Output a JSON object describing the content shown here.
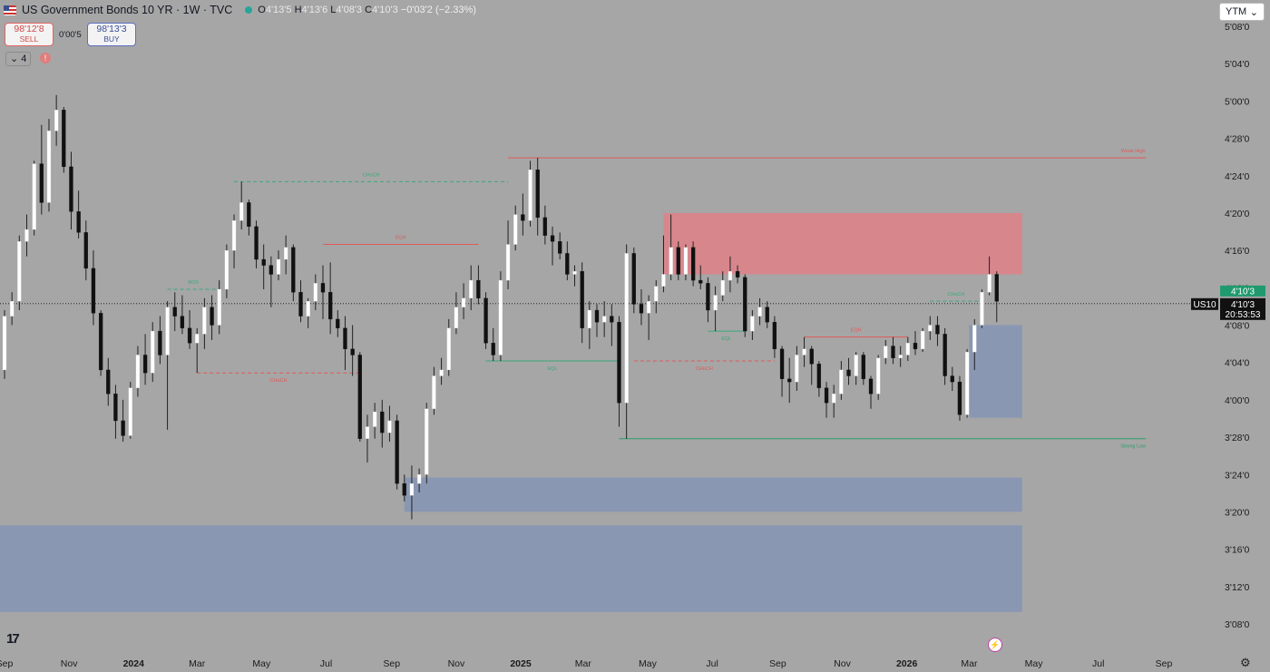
{
  "header": {
    "title": "US Government Bonds 10 YR · 1W · TVC",
    "open_label": "O",
    "open": "4'13'5",
    "high_label": "H",
    "high": "4'13'6",
    "low_label": "L",
    "low": "4'08'3",
    "close_label": "C",
    "close": "4'10'3",
    "change": "−0'03'2 (−2.33%)",
    "status_color": "#26a69a"
  },
  "trade": {
    "sell_price": "98'12'8",
    "sell_label": "SELL",
    "spread": "0'00'5",
    "buy_price": "98'13'3",
    "buy_label": "BUY"
  },
  "indicators_count": "4",
  "warning_icon": "!",
  "scale_mode": {
    "label": "YTM",
    "chevron": "⌄"
  },
  "price_labels": {
    "last": "4'10'3",
    "symbol": "US10",
    "current": "4'10'3",
    "countdown": "20:53:53"
  },
  "footer": {
    "logo": "17"
  },
  "chart_data": {
    "type": "candlestick",
    "timeframe": "1W",
    "y_axis": {
      "unit": "percent (in 32nds format)",
      "ticks": [
        {
          "label": "5'08'0",
          "value": 5.25
        },
        {
          "label": "5'04'0",
          "value": 5.125
        },
        {
          "label": "5'00'0",
          "value": 5.0
        },
        {
          "label": "4'28'0",
          "value": 4.875
        },
        {
          "label": "4'24'0",
          "value": 4.75
        },
        {
          "label": "4'20'0",
          "value": 4.625
        },
        {
          "label": "4'16'0",
          "value": 4.5
        },
        {
          "label": "4'12'0",
          "value": 4.375
        },
        {
          "label": "4'08'0",
          "value": 4.25
        },
        {
          "label": "4'04'0",
          "value": 4.125
        },
        {
          "label": "4'00'0",
          "value": 4.0
        },
        {
          "label": "3'28'0",
          "value": 3.875
        },
        {
          "label": "3'24'0",
          "value": 3.75
        },
        {
          "label": "3'20'0",
          "value": 3.625
        },
        {
          "label": "3'16'0",
          "value": 3.5
        },
        {
          "label": "3'12'0",
          "value": 3.375
        },
        {
          "label": "3'08'0",
          "value": 3.25
        }
      ]
    },
    "x_axis": {
      "start": "2023-09-01",
      "end": "2026-09-15",
      "ticks": [
        {
          "label": "Sep",
          "date": "2023-09-01"
        },
        {
          "label": "Nov",
          "date": "2023-11-01"
        },
        {
          "label": "2024",
          "date": "2024-01-01",
          "bold": true
        },
        {
          "label": "Mar",
          "date": "2024-03-01"
        },
        {
          "label": "May",
          "date": "2024-05-01"
        },
        {
          "label": "Jul",
          "date": "2024-07-01"
        },
        {
          "label": "Sep",
          "date": "2024-09-01"
        },
        {
          "label": "Nov",
          "date": "2024-11-01"
        },
        {
          "label": "2025",
          "date": "2025-01-01",
          "bold": true
        },
        {
          "label": "Mar",
          "date": "2025-03-01"
        },
        {
          "label": "May",
          "date": "2025-05-01"
        },
        {
          "label": "Jul",
          "date": "2025-07-01"
        },
        {
          "label": "Sep",
          "date": "2025-09-01"
        },
        {
          "label": "Nov",
          "date": "2025-11-01"
        },
        {
          "label": "2026",
          "date": "2026-01-01",
          "bold": true
        },
        {
          "label": "Mar",
          "date": "2026-03-01"
        },
        {
          "label": "May",
          "date": "2026-05-01"
        },
        {
          "label": "Jul",
          "date": "2026-07-01"
        },
        {
          "label": "Sep",
          "date": "2026-09-01"
        }
      ]
    },
    "candles": [
      [
        "2023-09-01",
        4.1,
        4.3,
        4.07,
        4.28
      ],
      [
        "2023-09-08",
        4.28,
        4.36,
        4.25,
        4.33
      ],
      [
        "2023-09-15",
        4.33,
        4.55,
        4.3,
        4.53
      ],
      [
        "2023-09-22",
        4.53,
        4.62,
        4.48,
        4.57
      ],
      [
        "2023-09-29",
        4.57,
        4.8,
        4.55,
        4.79
      ],
      [
        "2023-10-06",
        4.79,
        4.92,
        4.62,
        4.66
      ],
      [
        "2023-10-13",
        4.66,
        4.94,
        4.63,
        4.9
      ],
      [
        "2023-10-20",
        4.9,
        5.02,
        4.85,
        4.97
      ],
      [
        "2023-10-27",
        4.97,
        4.98,
        4.76,
        4.78
      ],
      [
        "2023-11-03",
        4.78,
        4.83,
        4.57,
        4.63
      ],
      [
        "2023-11-10",
        4.63,
        4.7,
        4.54,
        4.56
      ],
      [
        "2023-11-17",
        4.56,
        4.6,
        4.4,
        4.44
      ],
      [
        "2023-11-24",
        4.44,
        4.5,
        4.25,
        4.29
      ],
      [
        "2023-12-01",
        4.29,
        4.3,
        4.08,
        4.1
      ],
      [
        "2023-12-08",
        4.1,
        4.14,
        3.98,
        4.02
      ],
      [
        "2023-12-15",
        4.02,
        4.05,
        3.87,
        3.93
      ],
      [
        "2023-12-22",
        3.93,
        4.0,
        3.86,
        3.88
      ],
      [
        "2023-12-29",
        3.88,
        4.06,
        3.87,
        4.04
      ],
      [
        "2024-01-05",
        4.04,
        4.18,
        4.01,
        4.15
      ],
      [
        "2024-01-12",
        4.15,
        4.22,
        4.05,
        4.09
      ],
      [
        "2024-01-19",
        4.09,
        4.26,
        4.06,
        4.23
      ],
      [
        "2024-01-26",
        4.23,
        4.28,
        4.12,
        4.15
      ],
      [
        "2024-02-02",
        4.15,
        4.33,
        3.9,
        4.31
      ],
      [
        "2024-02-09",
        4.31,
        4.36,
        4.23,
        4.28
      ],
      [
        "2024-02-16",
        4.28,
        4.35,
        4.22,
        4.24
      ],
      [
        "2024-02-23",
        4.24,
        4.3,
        4.17,
        4.19
      ],
      [
        "2024-03-01",
        4.19,
        4.24,
        4.09,
        4.22
      ],
      [
        "2024-03-08",
        4.22,
        4.34,
        4.17,
        4.31
      ],
      [
        "2024-03-15",
        4.31,
        4.35,
        4.2,
        4.25
      ],
      [
        "2024-03-22",
        4.25,
        4.4,
        4.22,
        4.37
      ],
      [
        "2024-03-29",
        4.37,
        4.52,
        4.34,
        4.5
      ],
      [
        "2024-04-05",
        4.5,
        4.62,
        4.44,
        4.6
      ],
      [
        "2024-04-12",
        4.6,
        4.73,
        4.57,
        4.66
      ],
      [
        "2024-04-19",
        4.66,
        4.67,
        4.55,
        4.58
      ],
      [
        "2024-04-26",
        4.58,
        4.6,
        4.44,
        4.47
      ],
      [
        "2024-05-03",
        4.47,
        4.52,
        4.37,
        4.45
      ],
      [
        "2024-05-10",
        4.45,
        4.48,
        4.31,
        4.42
      ],
      [
        "2024-05-17",
        4.42,
        4.5,
        4.4,
        4.47
      ],
      [
        "2024-05-24",
        4.47,
        4.55,
        4.42,
        4.51
      ],
      [
        "2024-05-31",
        4.51,
        4.52,
        4.33,
        4.36
      ],
      [
        "2024-06-07",
        4.36,
        4.4,
        4.26,
        4.28
      ],
      [
        "2024-06-14",
        4.28,
        4.34,
        4.24,
        4.33
      ],
      [
        "2024-06-21",
        4.33,
        4.42,
        4.3,
        4.39
      ],
      [
        "2024-06-28",
        4.39,
        4.45,
        4.27,
        4.36
      ],
      [
        "2024-07-05",
        4.36,
        4.46,
        4.22,
        4.27
      ],
      [
        "2024-07-12",
        4.27,
        4.3,
        4.21,
        4.24
      ],
      [
        "2024-07-19",
        4.24,
        4.28,
        4.1,
        4.17
      ],
      [
        "2024-07-26",
        4.17,
        4.25,
        4.08,
        4.15
      ],
      [
        "2024-08-02",
        4.15,
        4.16,
        3.86,
        3.87
      ],
      [
        "2024-08-09",
        3.87,
        3.95,
        3.79,
        3.91
      ],
      [
        "2024-08-16",
        3.91,
        3.99,
        3.87,
        3.96
      ],
      [
        "2024-08-23",
        3.96,
        4.0,
        3.84,
        3.89
      ],
      [
        "2024-08-30",
        3.89,
        3.98,
        3.86,
        3.93
      ],
      [
        "2024-09-06",
        3.93,
        3.95,
        3.7,
        3.72
      ],
      [
        "2024-09-13",
        3.72,
        3.75,
        3.66,
        3.68
      ],
      [
        "2024-09-20",
        3.68,
        3.78,
        3.6,
        3.72
      ],
      [
        "2024-09-27",
        3.72,
        3.77,
        3.69,
        3.75
      ],
      [
        "2024-10-04",
        3.75,
        3.99,
        3.72,
        3.97
      ],
      [
        "2024-10-11",
        3.97,
        4.11,
        3.95,
        4.08
      ],
      [
        "2024-10-18",
        4.08,
        4.14,
        4.05,
        4.1
      ],
      [
        "2024-10-25",
        4.1,
        4.27,
        4.08,
        4.24
      ],
      [
        "2024-11-01",
        4.24,
        4.36,
        4.22,
        4.31
      ],
      [
        "2024-11-08",
        4.31,
        4.39,
        4.27,
        4.34
      ],
      [
        "2024-11-15",
        4.34,
        4.45,
        4.3,
        4.4
      ],
      [
        "2024-11-22",
        4.4,
        4.45,
        4.32,
        4.34
      ],
      [
        "2024-11-29",
        4.34,
        4.36,
        4.17,
        4.19
      ],
      [
        "2024-12-06",
        4.19,
        4.24,
        4.13,
        4.15
      ],
      [
        "2024-12-13",
        4.15,
        4.43,
        4.13,
        4.4
      ],
      [
        "2024-12-20",
        4.4,
        4.6,
        4.37,
        4.52
      ],
      [
        "2024-12-27",
        4.52,
        4.65,
        4.5,
        4.62
      ],
      [
        "2025-01-03",
        4.62,
        4.69,
        4.55,
        4.6
      ],
      [
        "2025-01-10",
        4.6,
        4.8,
        4.58,
        4.77
      ],
      [
        "2025-01-17",
        4.77,
        4.81,
        4.55,
        4.61
      ],
      [
        "2025-01-24",
        4.61,
        4.65,
        4.52,
        4.55
      ],
      [
        "2025-01-31",
        4.55,
        4.58,
        4.45,
        4.53
      ],
      [
        "2025-02-07",
        4.53,
        4.56,
        4.47,
        4.49
      ],
      [
        "2025-02-14",
        4.49,
        4.53,
        4.4,
        4.42
      ],
      [
        "2025-02-21",
        4.42,
        4.45,
        4.38,
        4.43
      ],
      [
        "2025-02-28",
        4.43,
        4.46,
        4.19,
        4.24
      ],
      [
        "2025-03-07",
        4.24,
        4.33,
        4.17,
        4.3
      ],
      [
        "2025-03-14",
        4.3,
        4.32,
        4.21,
        4.26
      ],
      [
        "2025-03-21",
        4.26,
        4.33,
        4.21,
        4.28
      ],
      [
        "2025-03-28",
        4.28,
        4.32,
        4.18,
        4.26
      ],
      [
        "2025-04-04",
        4.26,
        4.28,
        3.91,
        3.99
      ],
      [
        "2025-04-11",
        3.99,
        4.52,
        3.87,
        4.49
      ],
      [
        "2025-04-18",
        4.49,
        4.51,
        4.29,
        4.32
      ],
      [
        "2025-04-25",
        4.32,
        4.37,
        4.25,
        4.29
      ],
      [
        "2025-05-02",
        4.29,
        4.35,
        4.2,
        4.33
      ],
      [
        "2025-05-09",
        4.33,
        4.4,
        4.29,
        4.38
      ],
      [
        "2025-05-16",
        4.38,
        4.55,
        4.36,
        4.42
      ],
      [
        "2025-05-23",
        4.42,
        4.62,
        4.4,
        4.51
      ],
      [
        "2025-05-30",
        4.51,
        4.53,
        4.4,
        4.42
      ],
      [
        "2025-06-06",
        4.42,
        4.52,
        4.4,
        4.51
      ],
      [
        "2025-06-13",
        4.51,
        4.53,
        4.38,
        4.4
      ],
      [
        "2025-06-20",
        4.4,
        4.45,
        4.37,
        4.39
      ],
      [
        "2025-06-27",
        4.39,
        4.41,
        4.26,
        4.3
      ],
      [
        "2025-07-04",
        4.3,
        4.38,
        4.23,
        4.35
      ],
      [
        "2025-07-11",
        4.35,
        4.43,
        4.33,
        4.4
      ],
      [
        "2025-07-18",
        4.4,
        4.48,
        4.36,
        4.43
      ],
      [
        "2025-07-25",
        4.43,
        4.45,
        4.39,
        4.41
      ],
      [
        "2025-08-01",
        4.41,
        4.42,
        4.21,
        4.23
      ],
      [
        "2025-08-08",
        4.23,
        4.3,
        4.2,
        4.28
      ],
      [
        "2025-08-15",
        4.28,
        4.34,
        4.25,
        4.31
      ],
      [
        "2025-08-22",
        4.31,
        4.33,
        4.24,
        4.26
      ],
      [
        "2025-08-29",
        4.26,
        4.28,
        4.14,
        4.17
      ],
      [
        "2025-09-05",
        4.17,
        4.18,
        4.01,
        4.07
      ],
      [
        "2025-09-12",
        4.07,
        4.14,
        3.99,
        4.06
      ],
      [
        "2025-09-19",
        4.06,
        4.18,
        4.03,
        4.15
      ],
      [
        "2025-09-26",
        4.15,
        4.21,
        4.11,
        4.17
      ],
      [
        "2025-10-03",
        4.17,
        4.18,
        4.05,
        4.12
      ],
      [
        "2025-10-10",
        4.12,
        4.13,
        4.01,
        4.04
      ],
      [
        "2025-10-17",
        4.04,
        4.06,
        3.94,
        3.99
      ],
      [
        "2025-10-24",
        3.99,
        4.05,
        3.94,
        4.02
      ],
      [
        "2025-10-31",
        4.02,
        4.13,
        4.0,
        4.1
      ],
      [
        "2025-11-07",
        4.1,
        4.14,
        4.05,
        4.08
      ],
      [
        "2025-11-14",
        4.08,
        4.16,
        4.05,
        4.15
      ],
      [
        "2025-11-21",
        4.15,
        4.16,
        4.05,
        4.07
      ],
      [
        "2025-11-28",
        4.07,
        4.08,
        3.97,
        4.02
      ],
      [
        "2025-12-05",
        4.02,
        4.15,
        4.0,
        4.14
      ],
      [
        "2025-12-12",
        4.14,
        4.2,
        4.12,
        4.18
      ],
      [
        "2025-12-19",
        4.18,
        4.21,
        4.12,
        4.14
      ],
      [
        "2025-12-26",
        4.14,
        4.18,
        4.11,
        4.15
      ],
      [
        "2026-01-02",
        4.15,
        4.21,
        4.13,
        4.19
      ],
      [
        "2026-01-09",
        4.19,
        4.23,
        4.15,
        4.17
      ],
      [
        "2026-01-16",
        4.17,
        4.24,
        4.16,
        4.23
      ],
      [
        "2026-01-23",
        4.23,
        4.28,
        4.2,
        4.25
      ],
      [
        "2026-01-30",
        4.25,
        4.28,
        4.18,
        4.22
      ],
      [
        "2026-02-06",
        4.22,
        4.24,
        4.05,
        4.08
      ],
      [
        "2026-02-13",
        4.08,
        4.11,
        4.03,
        4.06
      ],
      [
        "2026-02-20",
        4.06,
        4.08,
        3.93,
        3.95
      ],
      [
        "2026-02-27",
        3.95,
        4.17,
        3.94,
        4.16
      ],
      [
        "2026-03-06",
        4.16,
        4.27,
        4.1,
        4.25
      ],
      [
        "2026-03-13",
        4.25,
        4.37,
        4.24,
        4.36
      ],
      [
        "2026-03-20",
        4.36,
        4.48,
        4.35,
        4.42
      ],
      [
        "2026-03-27",
        4.42,
        4.43,
        4.26,
        4.33
      ]
    ],
    "zones": [
      {
        "type": "supply",
        "color": "#d9848a",
        "from": "2025-05-16",
        "to": "2026-04-20",
        "low": 4.42,
        "high": 4.625
      },
      {
        "type": "demand",
        "color": "#8896b3",
        "from": "2026-03-01",
        "to": "2026-04-20",
        "low": 3.94,
        "high": 4.25
      },
      {
        "type": "demand",
        "color": "#8896b3",
        "from": "2024-09-13",
        "to": "2026-04-20",
        "low": 3.625,
        "high": 3.74
      },
      {
        "type": "demand",
        "color": "#8896b3",
        "from": "2023-08-25",
        "to": "2026-04-20",
        "low": 3.29,
        "high": 3.58
      }
    ],
    "lines": [
      {
        "label": "Weak High",
        "color": "#e05858",
        "style": "solid",
        "from": "2024-12-20",
        "to": "2026-08-15",
        "y": 4.81,
        "label_pos": "end-above"
      },
      {
        "label": "Strong Low",
        "color": "#2a9d6a",
        "style": "solid",
        "from": "2025-04-04",
        "to": "2026-08-15",
        "y": 3.87,
        "label_pos": "end-below"
      },
      {
        "label": "CHoCH",
        "color": "#3aa87a",
        "style": "dashed",
        "from": "2024-04-05",
        "to": "2024-12-20",
        "y": 4.73,
        "label_pos": "mid-above"
      },
      {
        "label": "EQH",
        "color": "#e05858",
        "style": "solid",
        "from": "2024-06-28",
        "to": "2024-11-22",
        "y": 4.52,
        "label_pos": "mid-above"
      },
      {
        "label": "BOS",
        "color": "#3aa87a",
        "style": "dashed",
        "from": "2024-02-02",
        "to": "2024-03-22",
        "y": 4.37,
        "label_pos": "mid-above"
      },
      {
        "label": "CHoCH",
        "color": "#e05858",
        "style": "dashed",
        "from": "2024-03-01",
        "to": "2024-08-02",
        "y": 4.09,
        "label_pos": "mid-below"
      },
      {
        "label": "EQL",
        "color": "#3aa87a",
        "style": "solid",
        "from": "2024-11-29",
        "to": "2025-04-04",
        "y": 4.13,
        "label_pos": "mid-below"
      },
      {
        "label": "CHoCH",
        "color": "#e05858",
        "style": "dashed",
        "from": "2025-04-18",
        "to": "2025-08-29",
        "y": 4.13,
        "label_pos": "mid-below"
      },
      {
        "label": "EQL",
        "color": "#3aa87a",
        "style": "solid",
        "from": "2025-06-27",
        "to": "2025-08-01",
        "y": 4.23,
        "label_pos": "mid-below"
      },
      {
        "label": "EQH",
        "color": "#e05858",
        "style": "solid",
        "from": "2025-09-26",
        "to": "2026-01-02",
        "y": 4.21,
        "label_pos": "mid-above"
      },
      {
        "label": "CHoCH",
        "color": "#3aa87a",
        "style": "dashed",
        "from": "2026-01-23",
        "to": "2026-03-13",
        "y": 4.33,
        "label_pos": "mid-above"
      }
    ],
    "last_price": 4.321875,
    "colors": {
      "up": "#ffffff",
      "down": "#111111",
      "wick": "#222222",
      "price_badge": "#1f9a6e",
      "axis_text": "#1a1a1a"
    }
  }
}
